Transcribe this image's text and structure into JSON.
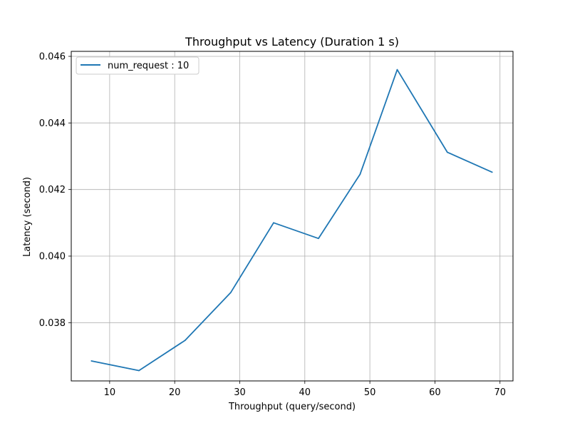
{
  "chart_data": {
    "type": "line",
    "title": "Throughput vs Latency (Duration 1 s)",
    "xlabel": "Throughput (query/second)",
    "ylabel": "Latency (second)",
    "xlim": [
      4.1,
      72.0
    ],
    "ylim": [
      0.03625,
      0.04615
    ],
    "xticks": [
      10,
      20,
      30,
      40,
      50,
      60,
      70
    ],
    "yticks": [
      0.038,
      0.04,
      0.042,
      0.044,
      0.046
    ],
    "ytick_labels": [
      "0.038",
      "0.040",
      "0.042",
      "0.044",
      "0.046"
    ],
    "grid": true,
    "legend_position": "top-left",
    "series": [
      {
        "name": "num_request : 10",
        "color": "#1f77b4",
        "x": [
          7.2,
          14.5,
          21.6,
          28.6,
          35.2,
          42.1,
          48.5,
          54.2,
          61.9,
          68.8
        ],
        "y": [
          0.03685,
          0.03656,
          0.03747,
          0.0389,
          0.041,
          0.04053,
          0.04246,
          0.0456,
          0.04312,
          0.04252
        ]
      }
    ]
  }
}
